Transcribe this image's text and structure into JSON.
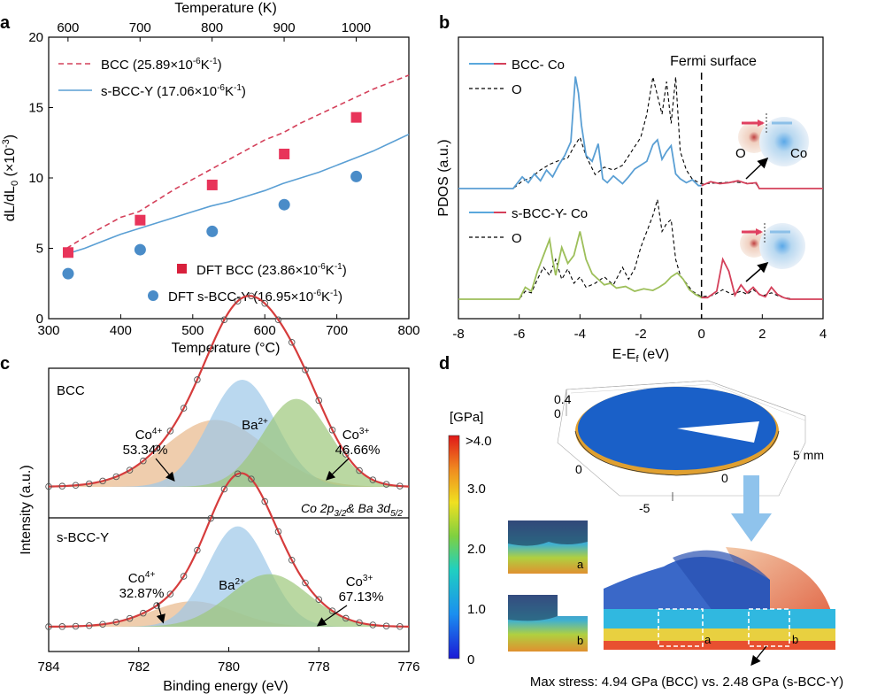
{
  "colors": {
    "bcc_red": "#d4405a",
    "sbcc_blue": "#5a9fd4",
    "dft_red": "#e8345a",
    "dft_blue": "#4a8cc8",
    "olive": "#9dbf5a",
    "orange_fill": "#e8b88a",
    "blue_fill": "#9dc7e8",
    "green_fill": "#9cc77a",
    "envelope": "#d63c3c"
  },
  "chart_data": [
    {
      "panel_label": "a",
      "type": "line",
      "title": "",
      "xlabel": "Temperature (°C)",
      "ylabel_main": "dL/dL",
      "ylabel_sub": "0",
      "ylabel_tail": " (×10",
      "ylabel_sup": "-3",
      "ylabel_end": ")",
      "top_xlabel": "Temperature (K)",
      "xlim": [
        300,
        800
      ],
      "ylim": [
        0,
        20
      ],
      "xticks": [
        300,
        400,
        500,
        600,
        700,
        800
      ],
      "yticks": [
        0,
        5,
        10,
        15,
        20
      ],
      "top_ticks": [
        600,
        700,
        800,
        900,
        1000
      ],
      "series": [
        {
          "name": "BCC",
          "coef": "(25.89×10",
          "coef_sup": "-6",
          "coef_unit": "K",
          "coef_unit_sup": "-1",
          "coef_end": ")",
          "style": "dashed",
          "x": [
            325,
            350,
            375,
            400,
            425,
            450,
            475,
            500,
            525,
            550,
            575,
            600,
            625,
            650,
            675,
            700,
            725,
            750,
            775,
            800
          ],
          "y": [
            5.0,
            5.8,
            6.5,
            7.2,
            7.6,
            8.4,
            9.2,
            9.9,
            10.6,
            11.3,
            12.0,
            12.7,
            13.2,
            13.9,
            14.5,
            15.1,
            15.7,
            16.3,
            16.8,
            17.3
          ]
        },
        {
          "name": "s-BCC-Y",
          "coef": "(17.06×10",
          "coef_sup": "-6",
          "coef_unit": "K",
          "coef_unit_sup": "-1",
          "coef_end": ")",
          "style": "solid",
          "x": [
            325,
            350,
            375,
            400,
            425,
            450,
            475,
            500,
            525,
            550,
            575,
            600,
            625,
            650,
            675,
            700,
            725,
            750,
            775,
            800
          ],
          "y": [
            4.6,
            5.0,
            5.5,
            6.0,
            6.4,
            6.8,
            7.2,
            7.6,
            8.0,
            8.3,
            8.7,
            9.1,
            9.6,
            10.0,
            10.4,
            10.9,
            11.4,
            11.9,
            12.5,
            13.1
          ]
        },
        {
          "name": "DFT BCC",
          "coef": "(23.86×10",
          "coef_sup": "-6",
          "coef_unit": "K",
          "coef_unit_sup": "-1",
          "coef_end": ")",
          "style": "square",
          "x": [
            327,
            427,
            527,
            627,
            727
          ],
          "y": [
            4.7,
            7.0,
            9.5,
            11.7,
            14.3
          ]
        },
        {
          "name": "DFT s-BCC-Y",
          "coef": "(16.95×10",
          "coef_sup": "-6",
          "coef_unit": "K",
          "coef_unit_sup": "-1",
          "coef_end": ")",
          "style": "circle",
          "x": [
            327,
            427,
            527,
            627,
            727
          ],
          "y": [
            3.2,
            4.9,
            6.2,
            8.1,
            10.1
          ]
        }
      ]
    },
    {
      "panel_label": "b",
      "type": "line",
      "xlabel": "E-E",
      "xlabel_sub": "f",
      "xlabel_end": " (eV)",
      "ylabel": "PDOS (a.u.)",
      "xlim": [
        -8,
        4
      ],
      "xticks": [
        -8,
        -6,
        -4,
        -2,
        0,
        2,
        4
      ],
      "fermi_label": "Fermi surface",
      "top_legend": [
        "BCC- Co",
        "O"
      ],
      "bottom_legend": [
        "s-BCC-Y- Co",
        "O"
      ],
      "inset_labels": [
        "O",
        "Co"
      ],
      "top_co": {
        "x": [
          -8,
          -6.2,
          -5.9,
          -5.7,
          -5.5,
          -5.3,
          -5.1,
          -4.9,
          -4.7,
          -4.5,
          -4.3,
          -4.15,
          -4.05,
          -3.95,
          -3.8,
          -3.6,
          -3.4,
          -3.25,
          -3.1,
          -2.9,
          -2.6,
          -2.4,
          -2.2,
          -2.0,
          -1.8,
          -1.6,
          -1.45,
          -1.3,
          -1.15,
          -1.0,
          -0.85,
          -0.7,
          -0.5,
          -0.3,
          -0.1,
          0,
          0.3,
          0.6,
          0.9,
          1.2,
          1.5,
          1.8,
          1.9,
          2.5,
          3,
          4
        ],
        "y": [
          0,
          0,
          1.2,
          0.6,
          1.5,
          0.8,
          1.9,
          1.2,
          2.4,
          3.4,
          4.8,
          11.5,
          9.8,
          6.5,
          3.4,
          2.8,
          4.6,
          1.0,
          0.6,
          1.3,
          0.5,
          1.2,
          2.0,
          2.4,
          2.8,
          4.5,
          5.0,
          3.0,
          3.8,
          4.4,
          1.5,
          1.0,
          0.6,
          0.9,
          0.3,
          0.3,
          0.7,
          0.5,
          0.6,
          0.8,
          0.5,
          0.6,
          0,
          0,
          0,
          0
        ]
      },
      "top_o": {
        "x": [
          -8,
          -6.2,
          -5.9,
          -5.6,
          -5.3,
          -5.0,
          -4.7,
          -4.4,
          -4.2,
          -4.0,
          -3.8,
          -3.5,
          -3.2,
          -2.9,
          -2.6,
          -2.3,
          -2.0,
          -1.8,
          -1.6,
          -1.45,
          -1.3,
          -1.15,
          -1.0,
          -0.85,
          -0.7,
          -0.5,
          -0.3,
          0,
          0.5,
          1.0,
          1.5,
          1.8,
          1.9,
          2.5,
          4
        ],
        "y": [
          0,
          0,
          0.8,
          1.2,
          2.0,
          2.6,
          3.0,
          3.3,
          4.5,
          5.5,
          3.5,
          1.5,
          2.3,
          2.0,
          2.5,
          4.0,
          5.5,
          8.0,
          12.0,
          10.0,
          8.0,
          11.5,
          7.0,
          12.0,
          4.0,
          2.0,
          1.0,
          0.5,
          0.6,
          0.7,
          0.6,
          0.5,
          0,
          0,
          0
        ]
      },
      "bottom_co": {
        "x": [
          -8,
          -6.0,
          -5.8,
          -5.6,
          -5.4,
          -5.2,
          -5.0,
          -4.9,
          -4.8,
          -4.6,
          -4.4,
          -4.2,
          -4.0,
          -3.8,
          -3.6,
          -3.4,
          -3.2,
          -3.0,
          -2.8,
          -2.5,
          -2.2,
          -1.9,
          -1.6,
          -1.4,
          -1.2,
          -1.0,
          -0.8,
          -0.6,
          -0.4,
          -0.2,
          0,
          0.2,
          0.5,
          0.7,
          0.9,
          1.1,
          1.3,
          1.5,
          1.7,
          1.9,
          2.1,
          2.3,
          2.5,
          2.7,
          2.9,
          3.5,
          4
        ],
        "y": [
          0,
          0,
          1.5,
          1.0,
          3.5,
          5.5,
          7.5,
          5.0,
          3.0,
          6.5,
          4.5,
          5.5,
          8.5,
          5.0,
          3.2,
          2.5,
          1.8,
          2.0,
          1.4,
          1.6,
          1.0,
          1.3,
          1.1,
          1.5,
          2.0,
          2.8,
          3.3,
          2.5,
          1.2,
          0.6,
          0.2,
          0.2,
          1.0,
          5.0,
          3.5,
          0.5,
          1.8,
          0.8,
          1.5,
          0.6,
          0.3,
          1.5,
          0.6,
          0.2,
          0,
          0,
          0
        ]
      },
      "bottom_o": {
        "x": [
          -8,
          -6.0,
          -5.8,
          -5.6,
          -5.4,
          -5.2,
          -5.0,
          -4.8,
          -4.6,
          -4.4,
          -4.2,
          -4.0,
          -3.8,
          -3.5,
          -3.2,
          -2.9,
          -2.6,
          -2.4,
          -2.2,
          -2.0,
          -1.8,
          -1.6,
          -1.45,
          -1.3,
          -1.15,
          -1.0,
          -0.85,
          -0.7,
          -0.5,
          -0.3,
          0,
          0.4,
          0.7,
          1.0,
          1.3,
          1.5,
          1.7,
          2.0,
          2.3,
          2.6,
          3.0,
          4
        ],
        "y": [
          0,
          0,
          1.0,
          0.8,
          2.5,
          4.0,
          3.0,
          5.0,
          2.5,
          3.8,
          2.0,
          2.8,
          1.5,
          2.0,
          2.8,
          1.8,
          4.0,
          2.5,
          3.8,
          6.5,
          8.5,
          10.5,
          12.5,
          8.5,
          9.5,
          10.0,
          5.0,
          3.0,
          2.0,
          1.0,
          0.3,
          0.5,
          1.2,
          0.6,
          1.0,
          0.6,
          1.2,
          0.4,
          0.8,
          0.3,
          0,
          0
        ]
      }
    },
    {
      "panel_label": "c",
      "type": "area",
      "xlabel": "Binding energy (eV)",
      "ylabel": "Intensity (a.u.)",
      "xlim": [
        784,
        776
      ],
      "xticks": [
        784,
        782,
        780,
        778,
        776
      ],
      "note_a": "Co 2p",
      "note_a_sub": "3/2",
      "note_b": "& Ba 3d",
      "note_b_sub": "5/2",
      "panels": [
        {
          "name": "BCC",
          "peaks": [
            {
              "label": "Co",
              "sup": "4+",
              "percent": "53.34%",
              "center": 780.3,
              "height": 0.35,
              "width": 1.6,
              "color": "orange"
            },
            {
              "label": "Ba",
              "sup": "2+",
              "percent": "",
              "center": 779.7,
              "height": 0.56,
              "width": 1.05,
              "color": "blue"
            },
            {
              "label": "Co",
              "sup": "3+",
              "percent": "46.66%",
              "center": 778.5,
              "height": 0.46,
              "width": 1.05,
              "color": "green"
            }
          ]
        },
        {
          "name": "s-BCC-Y",
          "peaks": [
            {
              "label": "Co",
              "sup": "4+",
              "percent": "32.87%",
              "center": 780.8,
              "height": 0.16,
              "width": 1.3,
              "color": "orange"
            },
            {
              "label": "Ba",
              "sup": "2+",
              "percent": "",
              "center": 779.8,
              "height": 0.63,
              "width": 0.95,
              "color": "blue"
            },
            {
              "label": "Co",
              "sup": "3+",
              "percent": "67.13%",
              "center": 779.1,
              "height": 0.33,
              "width": 1.25,
              "color": "green"
            }
          ]
        }
      ]
    }
  ],
  "panel_d": {
    "label": "d",
    "colorbar_title": "[GPa]",
    "colorbar_ticks": [
      ">4.0",
      "3.0",
      "2.0",
      "1.0",
      "0"
    ],
    "axis_labels_z": [
      "0.4",
      "0"
    ],
    "axis_labels_x": [
      "0",
      "0",
      "-5"
    ],
    "axis_unit": "5 mm",
    "inset_labels": [
      "a",
      "b"
    ],
    "caption": "Max stress: 4.94 GPa (BCC) vs. 2.48 GPa (s-BCC-Y)"
  }
}
